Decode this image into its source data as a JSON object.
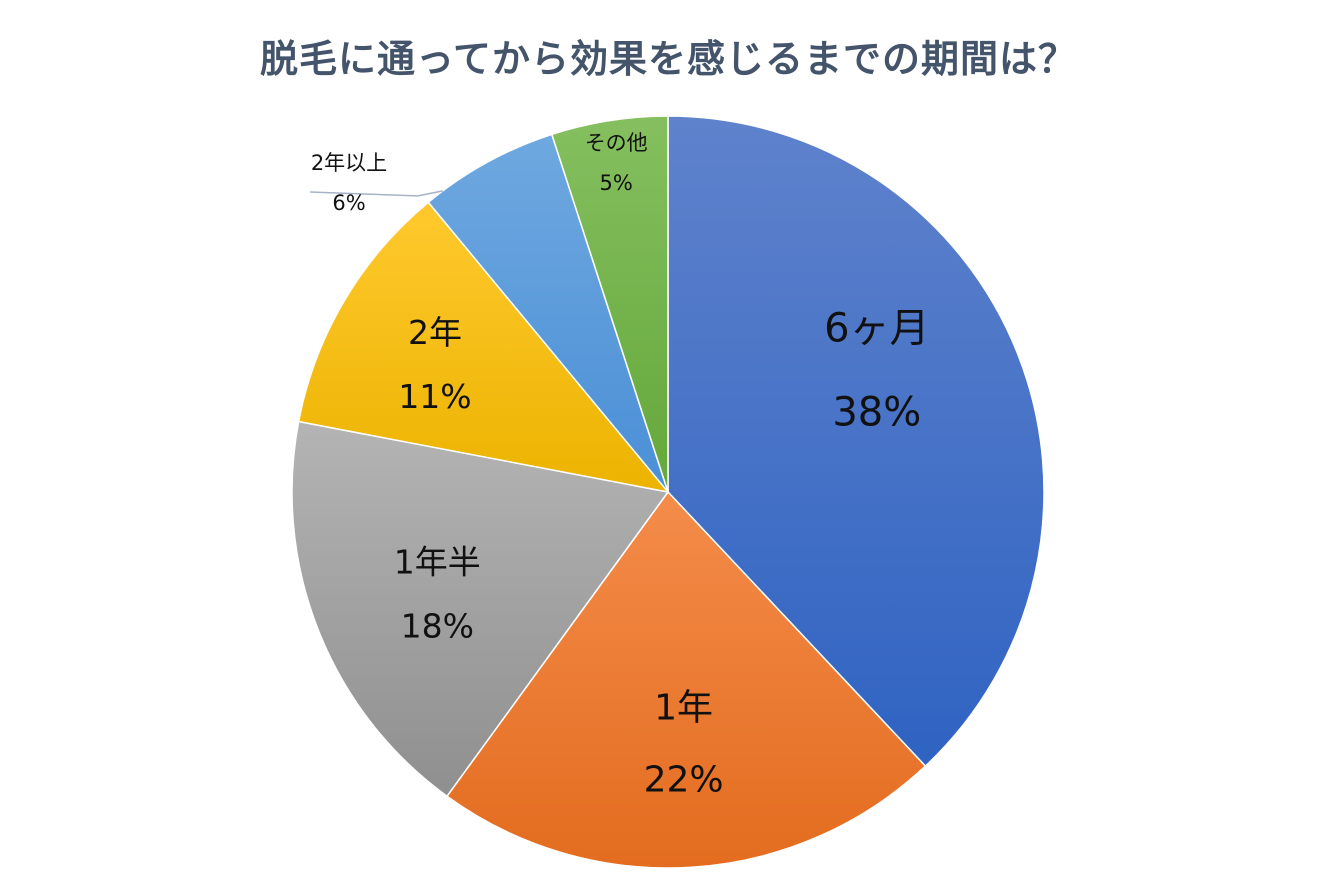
{
  "chart_data": {
    "type": "pie",
    "title": "脱毛に通ってから効果を感じるまでの期間は？",
    "slices": [
      {
        "label": "6ヶ月",
        "value": 38,
        "value_text": "38%",
        "color_light": "#5f82cc",
        "color_dark": "#2f63c2"
      },
      {
        "label": "1年",
        "value": 22,
        "value_text": "22%",
        "color_light": "#f48c4a",
        "color_dark": "#e36c1f"
      },
      {
        "label": "1年半",
        "value": 18,
        "value_text": "18%",
        "color_light": "#b4b4b4",
        "color_dark": "#8f8f8f"
      },
      {
        "label": "2年",
        "value": 11,
        "value_text": "11%",
        "color_light": "#ffc92e",
        "color_dark": "#ecb300"
      },
      {
        "label": "2年以上",
        "value": 6,
        "value_text": "6%",
        "color_light": "#6fa8e0",
        "color_dark": "#4a8fd6"
      },
      {
        "label": "その他",
        "value": 5,
        "value_text": "5%",
        "color_light": "#85bf5f",
        "color_dark": "#64a83a"
      }
    ],
    "start_angle_deg": 0,
    "direction": "clockwise",
    "legend": "none"
  }
}
